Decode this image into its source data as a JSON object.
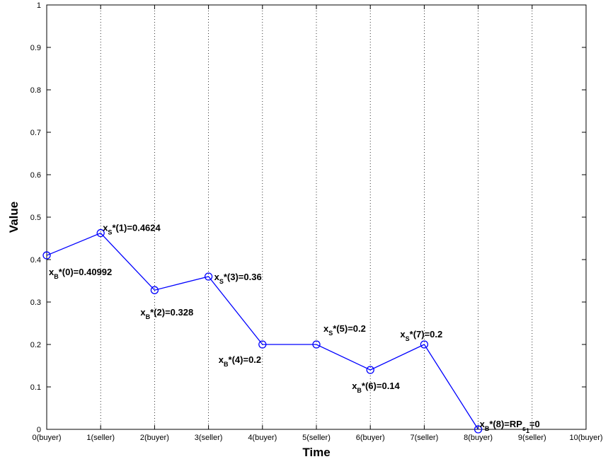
{
  "chart_data": {
    "type": "line",
    "title": "",
    "xlabel": "Time",
    "ylabel": "Value",
    "xlim": [
      0,
      10
    ],
    "ylim": [
      0,
      1
    ],
    "grid": "vertical dotted",
    "x_tick_labels": [
      "0(buyer)",
      "1(seller)",
      "2(buyer)",
      "3(seller)",
      "4(buyer)",
      "5(seller)",
      "6(buyer)",
      "7(seller)",
      "8(buyer)",
      "9(seller)",
      "10(buyer)"
    ],
    "y_tick_labels": [
      "0",
      "0.1",
      "0.2",
      "0.3",
      "0.4",
      "0.5",
      "0.6",
      "0.7",
      "0.8",
      "0.9",
      "1"
    ],
    "series": [
      {
        "color": "#0000ff",
        "marker": "circle",
        "x": [
          0,
          1,
          2,
          3,
          4,
          5,
          6,
          7,
          8
        ],
        "y": [
          0.40992,
          0.4624,
          0.328,
          0.36,
          0.2,
          0.2,
          0.14,
          0.2,
          0
        ]
      }
    ],
    "annotations": [
      {
        "x": 0,
        "y": 0.40992,
        "var": "x",
        "sub": "B",
        "rest": "*(0)=0.40992",
        "sub2": "",
        "tail": "",
        "position": "below-right"
      },
      {
        "x": 1,
        "y": 0.4624,
        "var": "x",
        "sub": "S",
        "rest": "*(1)=0.4624",
        "sub2": "",
        "tail": "",
        "position": "above-right"
      },
      {
        "x": 2,
        "y": 0.328,
        "var": "x",
        "sub": "B",
        "rest": "*(2)=0.328",
        "sub2": "",
        "tail": "",
        "position": "below"
      },
      {
        "x": 3,
        "y": 0.36,
        "var": "x",
        "sub": "S",
        "rest": "*(3)=0.36",
        "sub2": "",
        "tail": "",
        "position": "right"
      },
      {
        "x": 4,
        "y": 0.2,
        "var": "x",
        "sub": "B",
        "rest": "*(4)=0.2",
        "sub2": "",
        "tail": "",
        "position": "below-left"
      },
      {
        "x": 5,
        "y": 0.2,
        "var": "x",
        "sub": "S",
        "rest": "*(5)=0.2",
        "sub2": "",
        "tail": "",
        "position": "above"
      },
      {
        "x": 6,
        "y": 0.14,
        "var": "x",
        "sub": "B",
        "rest": "*(6)=0.14",
        "sub2": "",
        "tail": "",
        "position": "below"
      },
      {
        "x": 7,
        "y": 0.2,
        "var": "x",
        "sub": "S",
        "rest": "*(7)=0.2",
        "sub2": "",
        "tail": "",
        "position": "above-left"
      },
      {
        "x": 8,
        "y": 0,
        "var": "x",
        "sub": "B",
        "rest": "*(8)=RP",
        "sub2": "s",
        "sub3": "1",
        "tail": "=0",
        "position": "above-right"
      }
    ]
  }
}
